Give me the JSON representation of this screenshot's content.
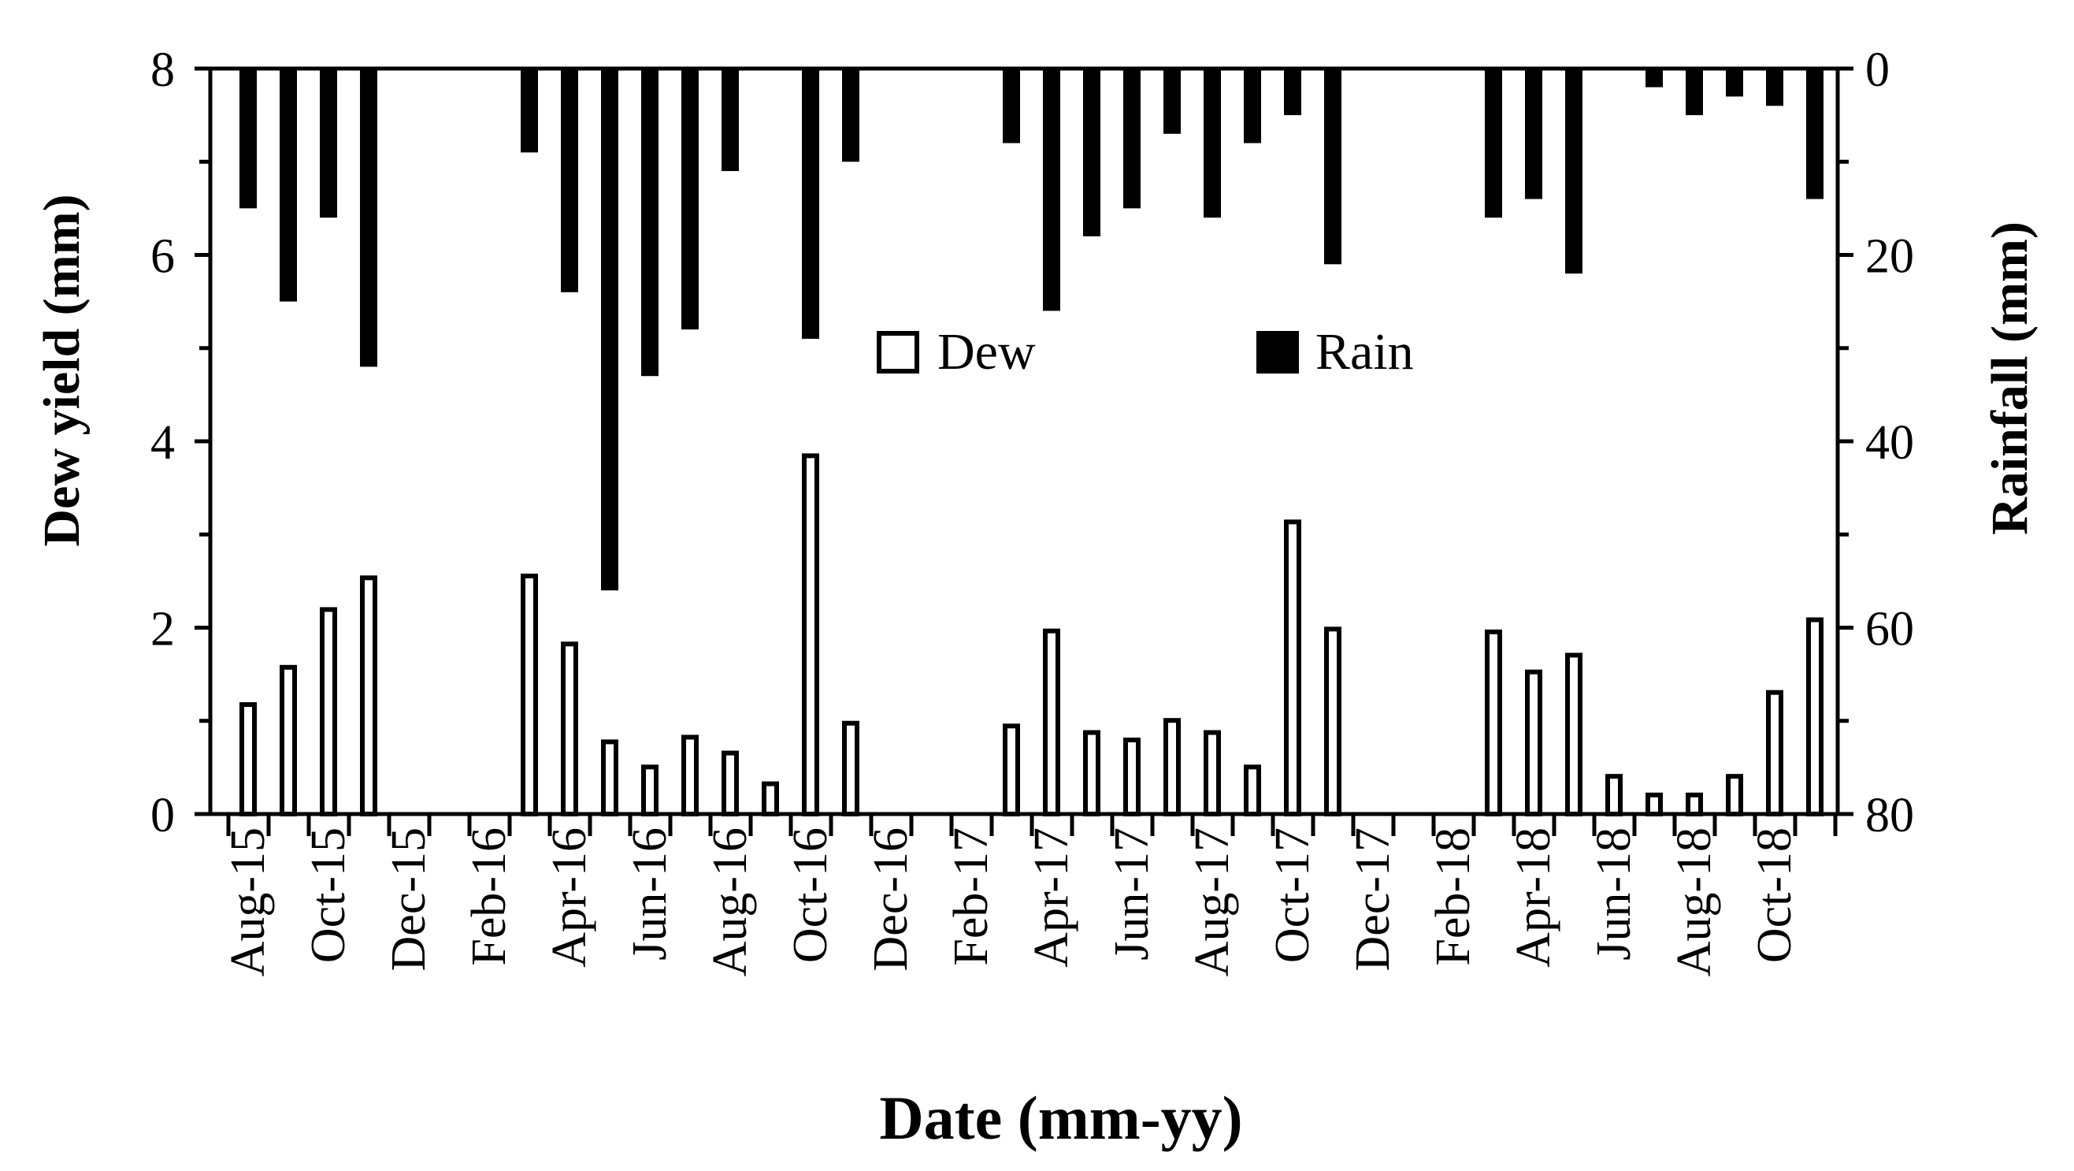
{
  "colors": {
    "dew_fill": "#ffffff",
    "dew_stroke": "#000000",
    "rain_fill": "#000000",
    "axis": "#000000"
  },
  "chart_data": {
    "type": "bar",
    "title": "",
    "xlabel": "Date (mm-yy)",
    "ylabel": "Dew yield (mm)",
    "y2label": "Rainfall (mm)",
    "ylim": [
      0,
      8
    ],
    "y2lim": [
      0,
      80
    ],
    "y2_inverted": true,
    "yticks": [
      "0",
      "2",
      "4",
      "6",
      "8"
    ],
    "y2ticks": [
      "0",
      "20",
      "40",
      "60",
      "80"
    ],
    "legend_position": "center",
    "categories": [
      "Aug-15",
      "Sep-15",
      "Oct-15",
      "Nov-15",
      "Dec-15",
      "Jan-16",
      "Feb-16",
      "Mar-16",
      "Apr-16",
      "May-16",
      "Jun-16",
      "Jul-16",
      "Aug-16",
      "Sep-16",
      "Oct-16",
      "Nov-16",
      "Dec-16",
      "Jan-17",
      "Feb-17",
      "Mar-17",
      "Apr-17",
      "May-17",
      "Jun-17",
      "Jul-17",
      "Aug-17",
      "Sep-17",
      "Oct-17",
      "Nov-17",
      "Dec-17",
      "Jan-18",
      "Feb-18",
      "Mar-18",
      "Apr-18",
      "May-18",
      "Jun-18",
      "Jul-18",
      "Aug-18",
      "Sep-18",
      "Oct-18",
      "Nov-18"
    ],
    "tick_labels": [
      "Aug-15",
      "Oct-15",
      "Dec-15",
      "Feb-16",
      "Apr-16",
      "Jun-16",
      "Aug-16",
      "Oct-16",
      "Dec-16",
      "Feb-17",
      "Apr-17",
      "Jun-17",
      "Aug-17",
      "Oct-17",
      "Dec-17",
      "Feb-18",
      "Apr-18",
      "Jun-18",
      "Aug-18",
      "Oct-18"
    ],
    "series": [
      {
        "name": "Dew",
        "axis": "left",
        "values": [
          1.2,
          1.6,
          2.22,
          2.56,
          0,
          0,
          0,
          2.58,
          1.85,
          0.8,
          0.53,
          0.85,
          0.68,
          0.35,
          3.87,
          1.0,
          0,
          0,
          0,
          0.97,
          1.99,
          0.9,
          0.82,
          1.03,
          0.9,
          0.53,
          3.16,
          2.01,
          0,
          0,
          0,
          1.98,
          1.55,
          1.73,
          0.43,
          0.23,
          0.23,
          0.43,
          1.33,
          2.11
        ]
      },
      {
        "name": "Rain",
        "axis": "right",
        "values": [
          15,
          25,
          16,
          32,
          0,
          0,
          0,
          9,
          24,
          56,
          33,
          28,
          11,
          0,
          29,
          10,
          0,
          0,
          0,
          8,
          26,
          18,
          15,
          7,
          16,
          8,
          5,
          21,
          0,
          0,
          0,
          16,
          14,
          22,
          0,
          2,
          5,
          3,
          4,
          14
        ]
      }
    ]
  }
}
